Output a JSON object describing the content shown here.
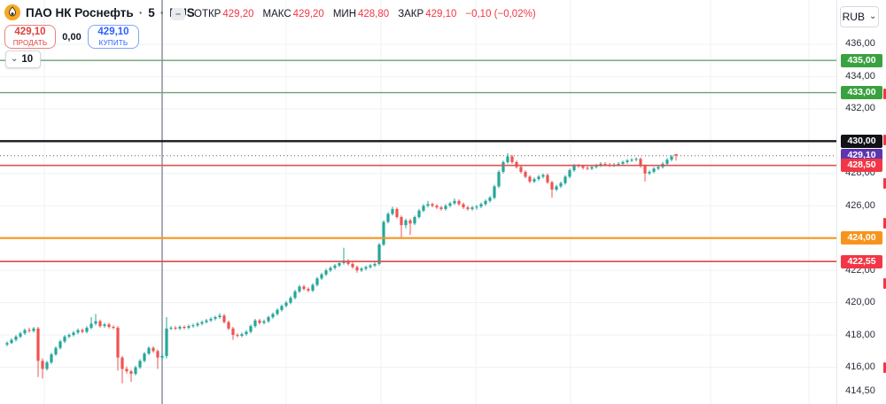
{
  "header": {
    "symbol": "ПАО НК Роснефть",
    "sep": "·",
    "interval": "5",
    "exchange": "RUS",
    "ohlc": {
      "o_label": "ОТКР",
      "o": "429,20",
      "h_label": "МАКС",
      "h": "429,20",
      "l_label": "МИН",
      "l": "428,80",
      "c_label": "ЗАКР",
      "c": "429,10",
      "change": "−0,10 (−0,02%)"
    },
    "currency": "RUB"
  },
  "trade_panel": {
    "sell": {
      "price": "429,10",
      "label": "ПРОДАТЬ"
    },
    "spread": "0,00",
    "buy": {
      "price": "429,10",
      "label": "КУПИТЬ"
    }
  },
  "interval_selector": {
    "value": "10"
  },
  "icons": {
    "chevron_down": "⌄",
    "minus": "–"
  },
  "colors": {
    "up": "#26a69a",
    "down": "#ef5350",
    "buy_blue": "#2962ff",
    "sell_red": "#e0403c",
    "value_red": "#f23645",
    "grid": "#eff1f4",
    "session_line": "#8d919c"
  },
  "price_axis": {
    "ticks": [
      {
        "v": 436.0,
        "label": "436,00"
      },
      {
        "v": 434.0,
        "label": "434,00"
      },
      {
        "v": 432.0,
        "label": "432,00"
      },
      {
        "v": 430.0,
        "label": "430,00"
      },
      {
        "v": 428.0,
        "label": "428,00"
      },
      {
        "v": 426.0,
        "label": "426,00"
      },
      {
        "v": 424.0,
        "label": "424,00"
      },
      {
        "v": 422.0,
        "label": "422,00"
      },
      {
        "v": 420.0,
        "label": "420,00"
      },
      {
        "v": 418.0,
        "label": "418,00"
      },
      {
        "v": 416.0,
        "label": "416,00"
      },
      {
        "v": 414.5,
        "label": "414,50"
      }
    ]
  },
  "levels": [
    {
      "price": 435.0,
      "label": "435,00",
      "line": "#6ba370",
      "badge": "#3aa13f",
      "style": "solid",
      "width": 1.4
    },
    {
      "price": 433.0,
      "label": "433,00",
      "line": "#6ba370",
      "badge": "#3aa13f",
      "style": "solid",
      "width": 1.4
    },
    {
      "price": 430.0,
      "label": "430,00",
      "line": "#17181c",
      "badge": "#101216",
      "style": "solid",
      "width": 2.4
    },
    {
      "price": 429.1,
      "label": "429,10",
      "line": "#5d5a6e",
      "badge": "#5e35b1",
      "style": "dotted",
      "width": 1
    },
    {
      "price": 428.5,
      "label": "428,50",
      "line": "#dd5353",
      "badge": "#f23645",
      "style": "solid",
      "width": 1.7
    },
    {
      "price": 424.0,
      "label": "424,00",
      "line": "#f7941e",
      "badge": "#f7941e",
      "style": "solid",
      "width": 2.2
    },
    {
      "price": 422.55,
      "label": "422,55",
      "line": "#dd5353",
      "badge": "#f23645",
      "style": "solid",
      "width": 1.7
    }
  ],
  "right_edge_marks_prices": [
    432.9,
    430.1,
    427.4,
    424.9,
    421.2,
    416.0
  ],
  "chart_data": {
    "type": "candlestick",
    "title": "ПАО НК Роснефть · 5 · RUS",
    "interval_minutes": 5,
    "currency": "RUB",
    "last_price": 429.1,
    "last_bar": {
      "open": 429.2,
      "high": 429.2,
      "low": 428.8,
      "close": 429.1,
      "change": -0.1,
      "change_pct": -0.02
    },
    "visible_price_range": [
      413.7,
      438.7
    ],
    "candles": [
      [
        417.4,
        417.6,
        417.3,
        417.5
      ],
      [
        417.5,
        417.8,
        417.45,
        417.7
      ],
      [
        417.7,
        418.0,
        417.6,
        417.9
      ],
      [
        417.9,
        418.2,
        417.8,
        418.1
      ],
      [
        418.1,
        418.4,
        418.0,
        418.3
      ],
      [
        418.3,
        418.45,
        418.15,
        418.25
      ],
      [
        418.25,
        418.5,
        418.15,
        418.4
      ],
      [
        418.4,
        418.5,
        415.4,
        416.4
      ],
      [
        416.4,
        416.55,
        415.3,
        415.9
      ],
      [
        415.9,
        416.4,
        415.8,
        416.3
      ],
      [
        416.3,
        416.9,
        416.2,
        416.8
      ],
      [
        416.8,
        417.3,
        416.7,
        417.2
      ],
      [
        417.2,
        417.7,
        417.1,
        417.6
      ],
      [
        417.6,
        418.0,
        417.5,
        417.9
      ],
      [
        417.9,
        418.1,
        417.8,
        418.0
      ],
      [
        418.0,
        418.25,
        417.9,
        418.15
      ],
      [
        418.15,
        418.4,
        418.05,
        418.3
      ],
      [
        418.3,
        418.4,
        418.1,
        418.2
      ],
      [
        418.2,
        418.55,
        418.1,
        418.45
      ],
      [
        418.45,
        419.1,
        418.35,
        418.7
      ],
      [
        418.7,
        419.3,
        418.6,
        418.85
      ],
      [
        418.85,
        418.95,
        418.45,
        418.55
      ],
      [
        418.55,
        418.75,
        418.45,
        418.65
      ],
      [
        418.65,
        418.75,
        418.4,
        418.5
      ],
      [
        418.5,
        418.6,
        418.35,
        418.45
      ],
      [
        418.45,
        418.55,
        415.8,
        416.6
      ],
      [
        416.6,
        416.7,
        415.0,
        415.9
      ],
      [
        415.9,
        416.05,
        415.6,
        415.75
      ],
      [
        415.75,
        415.85,
        415.1,
        415.6
      ],
      [
        415.6,
        416.1,
        415.5,
        416.0
      ],
      [
        416.0,
        416.5,
        415.9,
        416.4
      ],
      [
        416.4,
        416.95,
        416.3,
        416.85
      ],
      [
        416.85,
        417.3,
        416.75,
        417.2
      ],
      [
        417.2,
        417.3,
        416.9,
        417.0
      ],
      [
        417.0,
        417.1,
        415.9,
        416.6
      ],
      [
        416.6,
        416.85,
        416.4,
        416.7
      ],
      [
        416.7,
        419.1,
        416.55,
        418.4
      ],
      [
        418.4,
        418.55,
        418.3,
        418.45
      ],
      [
        418.45,
        418.55,
        418.3,
        418.4
      ],
      [
        418.4,
        418.6,
        418.3,
        418.5
      ],
      [
        418.5,
        418.6,
        418.35,
        418.45
      ],
      [
        418.45,
        418.65,
        418.35,
        418.55
      ],
      [
        418.55,
        418.7,
        418.45,
        418.6
      ],
      [
        418.6,
        418.8,
        418.5,
        418.7
      ],
      [
        418.7,
        418.9,
        418.6,
        418.8
      ],
      [
        418.8,
        419.0,
        418.7,
        418.9
      ],
      [
        418.9,
        419.1,
        418.8,
        419.0
      ],
      [
        419.0,
        419.2,
        418.9,
        419.1
      ],
      [
        419.1,
        419.35,
        419.0,
        419.2
      ],
      [
        419.2,
        419.3,
        418.7,
        418.8
      ],
      [
        418.8,
        418.9,
        418.3,
        418.4
      ],
      [
        418.4,
        418.5,
        417.7,
        418.0
      ],
      [
        418.0,
        418.1,
        417.85,
        417.95
      ],
      [
        417.95,
        418.15,
        417.85,
        418.05
      ],
      [
        418.05,
        418.3,
        417.95,
        418.2
      ],
      [
        418.2,
        418.65,
        418.1,
        418.55
      ],
      [
        418.55,
        419.0,
        418.45,
        418.9
      ],
      [
        418.9,
        419.0,
        418.65,
        418.75
      ],
      [
        418.75,
        418.95,
        418.65,
        418.85
      ],
      [
        418.85,
        419.2,
        418.75,
        419.1
      ],
      [
        419.1,
        419.4,
        419.0,
        419.3
      ],
      [
        419.3,
        419.65,
        419.2,
        419.55
      ],
      [
        419.55,
        419.9,
        419.45,
        419.8
      ],
      [
        419.8,
        420.1,
        419.7,
        420.0
      ],
      [
        420.0,
        420.4,
        419.9,
        420.3
      ],
      [
        420.3,
        420.8,
        420.2,
        420.7
      ],
      [
        420.7,
        421.1,
        420.6,
        421.0
      ],
      [
        421.0,
        421.1,
        420.75,
        420.85
      ],
      [
        420.85,
        420.95,
        420.65,
        420.75
      ],
      [
        420.75,
        421.2,
        420.65,
        421.1
      ],
      [
        421.1,
        421.6,
        421.0,
        421.5
      ],
      [
        421.5,
        421.85,
        421.4,
        421.75
      ],
      [
        421.75,
        422.1,
        421.65,
        422.0
      ],
      [
        422.0,
        422.25,
        421.9,
        422.15
      ],
      [
        422.15,
        422.4,
        422.05,
        422.3
      ],
      [
        422.3,
        422.55,
        422.2,
        422.45
      ],
      [
        422.45,
        423.4,
        422.35,
        422.6
      ],
      [
        422.6,
        422.7,
        422.3,
        422.4
      ],
      [
        422.4,
        422.5,
        422.1,
        422.2
      ],
      [
        422.2,
        422.3,
        421.85,
        422.0
      ],
      [
        422.0,
        422.2,
        421.9,
        422.1
      ],
      [
        422.1,
        422.3,
        422.0,
        422.2
      ],
      [
        422.2,
        422.4,
        422.1,
        422.3
      ],
      [
        422.3,
        422.5,
        422.2,
        422.4
      ],
      [
        422.4,
        423.7,
        422.3,
        423.6
      ],
      [
        423.6,
        425.1,
        423.5,
        425.0
      ],
      [
        425.0,
        425.6,
        424.9,
        425.5
      ],
      [
        425.5,
        425.95,
        425.4,
        425.8
      ],
      [
        425.8,
        425.9,
        425.2,
        425.3
      ],
      [
        425.3,
        425.4,
        424.0,
        424.8
      ],
      [
        424.8,
        425.2,
        424.6,
        425.1
      ],
      [
        425.1,
        425.2,
        424.2,
        424.9
      ],
      [
        424.9,
        425.4,
        424.8,
        425.3
      ],
      [
        425.3,
        425.8,
        425.2,
        425.7
      ],
      [
        425.7,
        426.1,
        425.6,
        426.0
      ],
      [
        426.0,
        426.3,
        425.9,
        426.1
      ],
      [
        426.1,
        426.2,
        425.9,
        426.0
      ],
      [
        426.0,
        426.1,
        425.8,
        425.9
      ],
      [
        425.9,
        426.0,
        425.7,
        425.8
      ],
      [
        425.8,
        426.1,
        425.7,
        426.0
      ],
      [
        426.0,
        426.25,
        425.9,
        426.15
      ],
      [
        426.15,
        426.45,
        426.05,
        426.3
      ],
      [
        426.3,
        426.4,
        426.0,
        426.1
      ],
      [
        426.1,
        426.2,
        425.8,
        425.9
      ],
      [
        425.9,
        426.0,
        425.7,
        425.8
      ],
      [
        425.8,
        426.0,
        425.7,
        425.9
      ],
      [
        425.9,
        426.05,
        425.75,
        425.95
      ],
      [
        425.95,
        426.2,
        425.85,
        426.1
      ],
      [
        426.1,
        426.4,
        426.0,
        426.3
      ],
      [
        426.3,
        426.6,
        426.2,
        426.5
      ],
      [
        426.5,
        427.3,
        426.4,
        427.2
      ],
      [
        427.2,
        428.2,
        427.1,
        428.1
      ],
      [
        428.1,
        428.8,
        428.0,
        428.7
      ],
      [
        428.7,
        429.25,
        428.6,
        429.05
      ],
      [
        429.05,
        429.15,
        428.6,
        428.7
      ],
      [
        428.7,
        428.8,
        428.3,
        428.4
      ],
      [
        428.4,
        428.5,
        428.0,
        428.1
      ],
      [
        428.1,
        428.2,
        427.7,
        427.8
      ],
      [
        427.8,
        427.9,
        427.4,
        427.5
      ],
      [
        427.5,
        427.75,
        427.4,
        427.65
      ],
      [
        427.65,
        427.9,
        427.55,
        427.8
      ],
      [
        427.8,
        428.0,
        427.7,
        427.9
      ],
      [
        427.9,
        428.0,
        427.35,
        427.45
      ],
      [
        427.45,
        427.55,
        426.5,
        427.0
      ],
      [
        427.0,
        427.3,
        426.9,
        427.2
      ],
      [
        427.2,
        427.5,
        427.1,
        427.4
      ],
      [
        427.4,
        427.9,
        427.3,
        427.8
      ],
      [
        427.8,
        428.3,
        427.7,
        428.2
      ],
      [
        428.2,
        428.6,
        428.1,
        428.5
      ],
      [
        428.5,
        428.6,
        428.35,
        428.45
      ],
      [
        428.45,
        428.55,
        428.25,
        428.35
      ],
      [
        428.35,
        428.45,
        428.2,
        428.3
      ],
      [
        428.3,
        428.5,
        428.2,
        428.4
      ],
      [
        428.4,
        428.6,
        428.3,
        428.5
      ],
      [
        428.5,
        428.7,
        428.4,
        428.6
      ],
      [
        428.6,
        428.7,
        428.45,
        428.55
      ],
      [
        428.55,
        428.65,
        428.4,
        428.5
      ],
      [
        428.5,
        428.65,
        428.4,
        428.55
      ],
      [
        428.55,
        428.7,
        428.45,
        428.6
      ],
      [
        428.6,
        428.8,
        428.5,
        428.7
      ],
      [
        428.7,
        428.9,
        428.6,
        428.8
      ],
      [
        428.8,
        428.95,
        428.7,
        428.85
      ],
      [
        428.85,
        429.0,
        428.75,
        428.9
      ],
      [
        428.9,
        429.0,
        428.35,
        428.45
      ],
      [
        428.45,
        428.55,
        427.5,
        428.0
      ],
      [
        428.0,
        428.2,
        427.9,
        428.1
      ],
      [
        428.1,
        428.4,
        428.0,
        428.3
      ],
      [
        428.3,
        428.5,
        428.2,
        428.4
      ],
      [
        428.4,
        428.7,
        428.3,
        428.6
      ],
      [
        428.6,
        428.95,
        428.5,
        428.85
      ],
      [
        428.85,
        429.15,
        428.75,
        429.05
      ],
      [
        429.2,
        429.2,
        428.8,
        429.1
      ]
    ]
  }
}
